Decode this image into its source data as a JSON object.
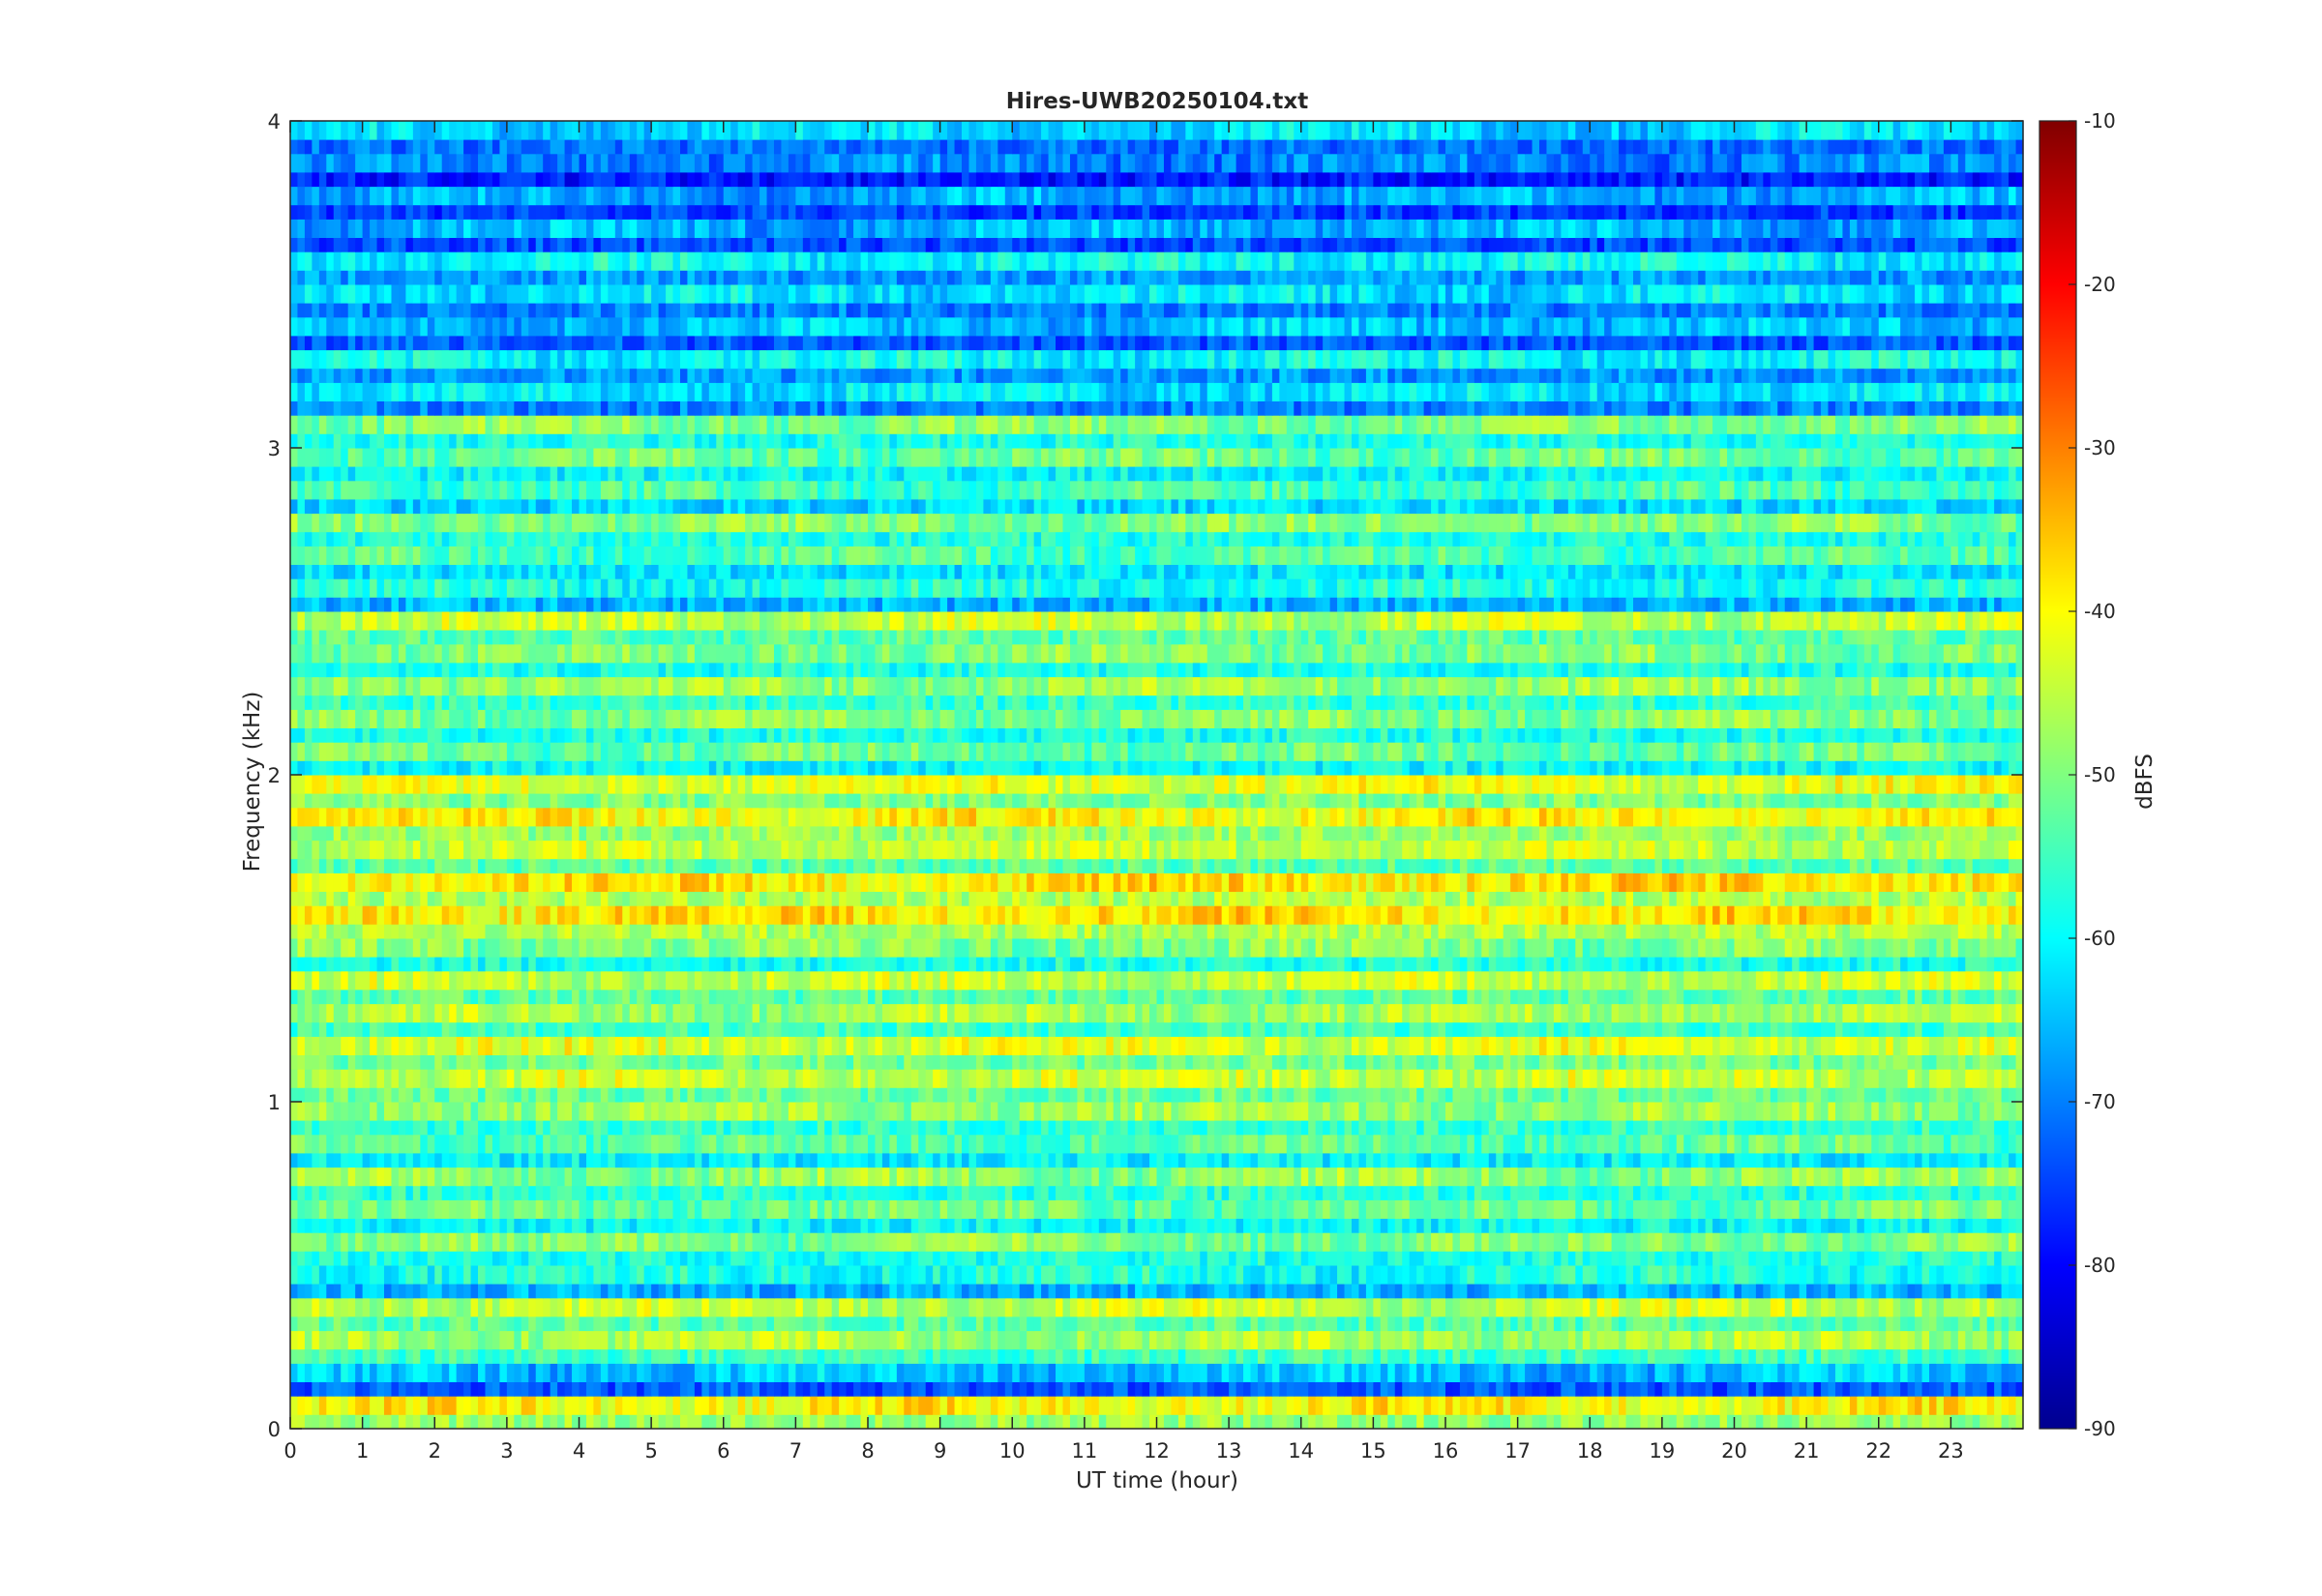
{
  "chart_data": {
    "type": "heatmap",
    "title": "Hires-UWB20250104.txt",
    "xlabel": "UT time (hour)",
    "ylabel": "Frequency (kHz)",
    "xlim": [
      0,
      24
    ],
    "ylim": [
      0,
      4
    ],
    "x_ticks": [
      "0",
      "1",
      "2",
      "3",
      "4",
      "5",
      "6",
      "7",
      "8",
      "9",
      "10",
      "11",
      "12",
      "13",
      "14",
      "15",
      "16",
      "17",
      "18",
      "19",
      "20",
      "21",
      "22",
      "23"
    ],
    "y_ticks": [
      "0",
      "1",
      "2",
      "3",
      "4"
    ],
    "colorbar": {
      "label": "dBFS",
      "range": [
        -90,
        -10
      ],
      "ticks": [
        "-90",
        "-80",
        "-70",
        "-60",
        "-50",
        "-40",
        "-30",
        "-20",
        "-10"
      ],
      "colormap": "jet"
    },
    "band_freq_khz": [
      0.05,
      0.15,
      0.25,
      0.35,
      0.45,
      0.55,
      0.65,
      0.75,
      0.85,
      0.95,
      1.05,
      1.15,
      1.25,
      1.35,
      1.45,
      1.55,
      1.65,
      1.75,
      1.85,
      1.95,
      2.05,
      2.15,
      2.25,
      2.35,
      2.45,
      2.55,
      2.65,
      2.75,
      2.85,
      2.95,
      3.05,
      3.15,
      3.25,
      3.35,
      3.45,
      3.55,
      3.65,
      3.75,
      3.85,
      3.95
    ],
    "band_level_dbfs": [
      -40,
      -65,
      -47,
      -45,
      -58,
      -50,
      -52,
      -49,
      -53,
      -48,
      -44,
      -43,
      -47,
      -45,
      -50,
      -38,
      -38,
      -45,
      -40,
      -42,
      -52,
      -50,
      -48,
      -50,
      -45,
      -58,
      -54,
      -50,
      -55,
      -52,
      -50,
      -62,
      -60,
      -65,
      -62,
      -60,
      -66,
      -67,
      -70,
      -63
    ]
  }
}
